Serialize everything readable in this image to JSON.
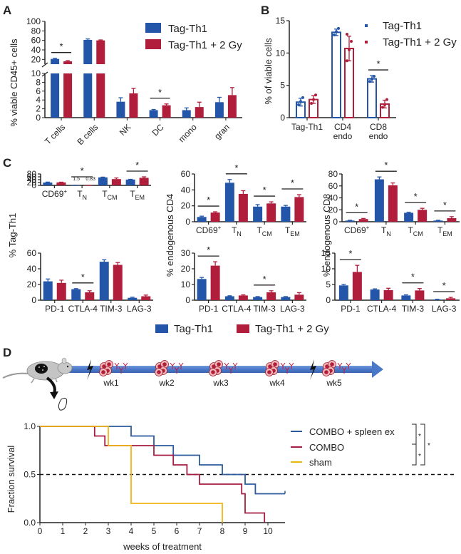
{
  "colors": {
    "tag_th1": "#2356a8",
    "tag_th1_2gy": "#b01e3c",
    "combo_spleen": "#2d5a9c",
    "combo": "#a51d42",
    "sham": "#f2b516",
    "axis": "#222222",
    "arrow": "#4a78c8"
  },
  "panels": {
    "A": "A",
    "B": "B",
    "C": "C",
    "D": "D"
  },
  "chart_data": [
    {
      "id": "A",
      "type": "bar",
      "ylabel": "% viable CD45+ cells",
      "categories": [
        "T cells",
        "B cells",
        "NK",
        "DC",
        "mono",
        "gran"
      ],
      "broken_axis": {
        "lower": [
          0,
          10
        ],
        "upper": [
          10,
          100
        ]
      },
      "yticks_lower": [
        "0",
        "2",
        "4",
        "6",
        "8",
        "10"
      ],
      "yticks_upper": [
        "20",
        "40",
        "60",
        "80",
        "100"
      ],
      "series": [
        {
          "name": "Tag-Th1",
          "values": [
            21,
            61,
            3.6,
            1.7,
            1.7,
            3.5
          ],
          "errors": [
            1.5,
            2,
            0.9,
            0.15,
            0.5,
            1.1
          ]
        },
        {
          "name": "Tag-Th1 + 2 Gy",
          "values": [
            16,
            60,
            5.5,
            2.8,
            2.4,
            5.1
          ],
          "errors": [
            1.5,
            1,
            1.1,
            0.3,
            1.1,
            1.7
          ]
        }
      ],
      "significance": [
        {
          "category": "T cells",
          "label": "*"
        },
        {
          "category": "DC",
          "label": "*"
        }
      ],
      "legend": [
        "Tag-Th1",
        "Tag-Th1 + 2 Gy"
      ]
    },
    {
      "id": "B",
      "type": "bar",
      "ylabel": "% of viable cells",
      "categories": [
        "Tag-Th1",
        "CD4 endo",
        "CD8 endo"
      ],
      "category_lines": [
        [
          "Tag-Th1"
        ],
        [
          "CD4",
          "endo"
        ],
        [
          "CD8",
          "endo"
        ]
      ],
      "ylim": [
        0,
        15
      ],
      "yticks": [
        "0",
        "5",
        "10",
        "15"
      ],
      "series": [
        {
          "name": "Tag-Th1",
          "values": [
            2.4,
            13.2,
            6.0
          ],
          "errors": [
            0.6,
            0.5,
            0.5
          ],
          "points": [
            [
              2.0,
              2.5,
              3.1
            ],
            [
              12.8,
              13.3,
              13.8
            ],
            [
              5.6,
              6.0,
              6.4
            ]
          ]
        },
        {
          "name": "Tag-Th1 + 2 Gy",
          "values": [
            2.8,
            10.7,
            2.1
          ],
          "errors": [
            0.6,
            1.9,
            0.6
          ],
          "points": [
            [
              2.2,
              2.8,
              3.5
            ],
            [
              8.8,
              10.5,
              11.8,
              12.9
            ],
            [
              1.6,
              2.0,
              2.8
            ]
          ]
        }
      ],
      "significance": [
        {
          "category": "CD8 endo",
          "label": "*"
        }
      ],
      "legend": [
        "Tag-Th1",
        "Tag-Th1 + 2 Gy"
      ]
    },
    {
      "id": "C1",
      "type": "bar",
      "ylabel": "% Tag-Th1",
      "categories": [
        "CD69+",
        "TN",
        "TCM",
        "TEM"
      ],
      "ylim": [
        0,
        80
      ],
      "yticks": [
        "0",
        "20",
        "40",
        "60",
        "80"
      ],
      "series": [
        {
          "name": "Tag-Th1",
          "values": [
            20,
            1.5,
            56,
            41
          ],
          "errors": [
            3,
            0.3,
            2,
            1.5
          ]
        },
        {
          "name": "Tag-Th1 + 2 Gy",
          "values": [
            21,
            0.83,
            44,
            53
          ],
          "errors": [
            1.5,
            0.2,
            8,
            7
          ]
        }
      ],
      "annotations": [
        "1.5",
        "0.83"
      ],
      "significance": [
        {
          "category": "TN",
          "label": "*"
        },
        {
          "category": "TEM",
          "label": "*"
        }
      ]
    },
    {
      "id": "C2",
      "type": "bar",
      "ylabel": "% endogenous CD4",
      "categories": [
        "CD69+",
        "TN",
        "TCM",
        "TEM"
      ],
      "ylim": [
        0,
        60
      ],
      "yticks": [
        "0",
        "20",
        "40",
        "60"
      ],
      "series": [
        {
          "name": "Tag-Th1",
          "values": [
            6,
            49,
            19,
            19
          ],
          "errors": [
            1,
            4,
            2.5,
            1.5
          ]
        },
        {
          "name": "Tag-Th1 + 2 Gy",
          "values": [
            11.5,
            35,
            23,
            31
          ],
          "errors": [
            1,
            4,
            2,
            3
          ]
        }
      ],
      "significance": [
        {
          "category": "CD69+",
          "label": "*"
        },
        {
          "category": "TN",
          "label": "*"
        },
        {
          "category": "TCM",
          "label": "*"
        },
        {
          "category": "TEM",
          "label": "*"
        }
      ]
    },
    {
      "id": "C3",
      "type": "bar",
      "ylabel": "% endogenous CD8",
      "categories": [
        "CD69+",
        "TN",
        "TCM",
        "TEM"
      ],
      "ylim": [
        0,
        80
      ],
      "yticks": [
        "0",
        "20",
        "40",
        "60",
        "80"
      ],
      "series": [
        {
          "name": "Tag-Th1",
          "values": [
            2,
            71,
            15,
            2
          ],
          "errors": [
            0.5,
            4,
            1,
            0.5
          ]
        },
        {
          "name": "Tag-Th1 + 2 Gy",
          "values": [
            4.5,
            61,
            20,
            6
          ],
          "errors": [
            1,
            4,
            2.5,
            2.5
          ]
        }
      ],
      "significance": [
        {
          "category": "CD69+",
          "label": "*"
        },
        {
          "category": "TN",
          "label": "*"
        },
        {
          "category": "TCM",
          "label": "*"
        },
        {
          "category": "TEM",
          "label": "*"
        }
      ]
    },
    {
      "id": "C4",
      "type": "bar",
      "ylabel": "",
      "categories": [
        "PD-1",
        "CTLA-4",
        "TIM-3",
        "LAG-3"
      ],
      "ylim": [
        0,
        60
      ],
      "yticks": [
        "0",
        "20",
        "40",
        "60"
      ],
      "series": [
        {
          "name": "Tag-Th1",
          "values": [
            24,
            14,
            49,
            3
          ],
          "errors": [
            3,
            0.7,
            2.5,
            0.8
          ]
        },
        {
          "name": "Tag-Th1 + 2 Gy",
          "values": [
            22,
            10,
            45,
            5
          ],
          "errors": [
            3.5,
            2,
            3,
            1.5
          ]
        }
      ],
      "significance": [
        {
          "category": "CTLA-4",
          "label": "*"
        }
      ]
    },
    {
      "id": "C5",
      "type": "bar",
      "ylabel": "",
      "categories": [
        "PD-1",
        "CTLA-4",
        "TIM-3",
        "LAG-3"
      ],
      "ylim": [
        0,
        30
      ],
      "yticks": [
        "0",
        "10",
        "20",
        "30"
      ],
      "series": [
        {
          "name": "Tag-Th1",
          "values": [
            13.5,
            2.5,
            2,
            2
          ],
          "errors": [
            1,
            0.3,
            0.3,
            0.3
          ]
        },
        {
          "name": "Tag-Th1 + 2 Gy",
          "values": [
            22,
            3,
            5,
            3.5
          ],
          "errors": [
            2.5,
            0.4,
            1,
            1.3
          ]
        }
      ],
      "significance": [
        {
          "category": "PD-1",
          "label": "*"
        },
        {
          "category": "TIM-3",
          "label": "*"
        }
      ]
    },
    {
      "id": "C6",
      "type": "bar",
      "ylabel": "",
      "categories": [
        "PD-1",
        "CTLA-4",
        "TIM-3",
        "LAG-3"
      ],
      "ylim": [
        0,
        15
      ],
      "yticks": [
        "0",
        "5",
        "10",
        "15"
      ],
      "series": [
        {
          "name": "Tag-Th1",
          "values": [
            4.7,
            3.4,
            1.5,
            0.2
          ],
          "errors": [
            0.3,
            0.2,
            0.2,
            0.1
          ]
        },
        {
          "name": "Tag-Th1 + 2 Gy",
          "values": [
            9,
            3.2,
            3.1,
            0.6
          ],
          "errors": [
            2.1,
            0.6,
            0.6,
            0.3
          ]
        }
      ],
      "significance": [
        {
          "category": "PD-1",
          "label": "*"
        },
        {
          "category": "TIM-3",
          "label": "*"
        },
        {
          "category": "LAG-3",
          "label": "*"
        }
      ]
    },
    {
      "id": "D",
      "type": "line",
      "subtype": "kaplan-meier",
      "xlabel": "weeks of treatment",
      "ylabel": "Fraction survival",
      "xlim": [
        0,
        11
      ],
      "ylim": [
        0,
        1
      ],
      "xticks": [
        "0",
        "1",
        "2",
        "3",
        "4",
        "5",
        "6",
        "7",
        "8",
        "9",
        "10"
      ],
      "yticks": [
        "0.0",
        "0.5",
        "1.0"
      ],
      "reference_line": 0.5,
      "series": [
        {
          "name": "COMBO + spleen ex",
          "steps": [
            [
              0,
              1.0
            ],
            [
              4,
              0.9
            ],
            [
              5,
              0.8
            ],
            [
              5.85,
              0.7
            ],
            [
              7,
              0.6
            ],
            [
              8,
              0.5
            ],
            [
              9,
              0.4
            ],
            [
              9.45,
              0.3
            ],
            [
              10.75,
              0.3
            ]
          ],
          "censored_end": true
        },
        {
          "name": "COMBO",
          "steps": [
            [
              0,
              1.0
            ],
            [
              2.4,
              0.9
            ],
            [
              2.85,
              0.8
            ],
            [
              5,
              0.7
            ],
            [
              5.85,
              0.6
            ],
            [
              6.45,
              0.5
            ],
            [
              7,
              0.4
            ],
            [
              8.85,
              0.3
            ],
            [
              9,
              0.1
            ],
            [
              9.85,
              0.0
            ]
          ]
        },
        {
          "name": "sham",
          "steps": [
            [
              0,
              1.0
            ],
            [
              3,
              0.8
            ],
            [
              4,
              0.2
            ],
            [
              8,
              0.0
            ]
          ]
        }
      ],
      "significance": [
        {
          "pair": [
            "COMBO + spleen ex",
            "COMBO"
          ],
          "label": "*"
        },
        {
          "pair": [
            "COMBO",
            "sham"
          ],
          "label": "*"
        },
        {
          "pair": [
            "COMBO + spleen ex",
            "sham"
          ],
          "label": "*"
        }
      ]
    }
  ],
  "timeline": {
    "weeks": [
      "wk1",
      "wk2",
      "wk3",
      "wk4",
      "wk5"
    ],
    "irradiation_before": [
      "wk1",
      "wk5"
    ]
  },
  "legend_C": [
    "Tag-Th1",
    "Tag-Th1 + 2 Gy"
  ]
}
